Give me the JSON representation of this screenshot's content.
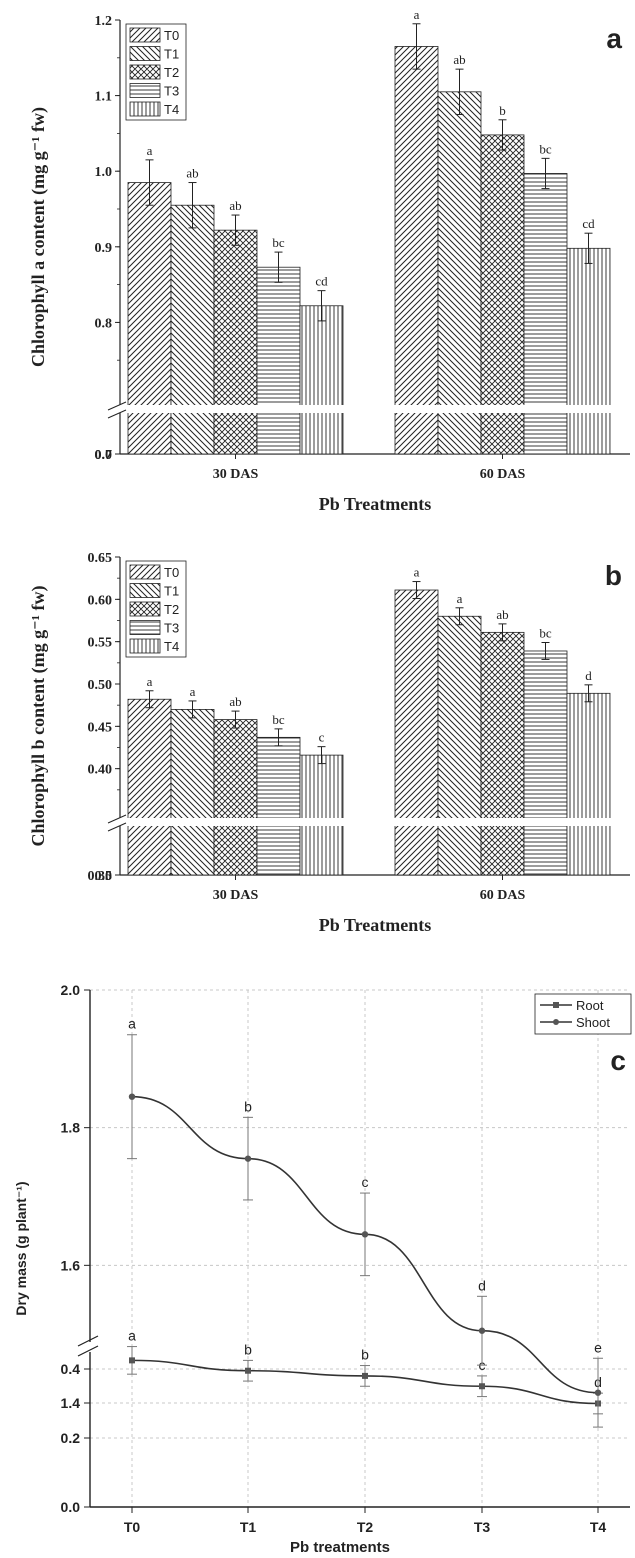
{
  "chart_data": [
    {
      "type": "bar",
      "panel": "a",
      "categories": [
        "30 DAS",
        "60 DAS"
      ],
      "series": [
        {
          "name": "T0",
          "values": [
            0.985,
            1.165
          ],
          "errors": [
            0.03,
            0.03
          ],
          "letters": [
            "a",
            "a"
          ]
        },
        {
          "name": "T1",
          "values": [
            0.955,
            1.105
          ],
          "errors": [
            0.03,
            0.03
          ],
          "letters": [
            "ab",
            "ab"
          ]
        },
        {
          "name": "T2",
          "values": [
            0.922,
            1.048
          ],
          "errors": [
            0.02,
            0.02
          ],
          "letters": [
            "ab",
            "b"
          ]
        },
        {
          "name": "T3",
          "values": [
            0.873,
            0.997
          ],
          "errors": [
            0.02,
            0.02
          ],
          "letters": [
            "bc",
            "bc"
          ]
        },
        {
          "name": "T4",
          "values": [
            0.822,
            0.898
          ],
          "errors": [
            0.02,
            0.02
          ],
          "letters": [
            "cd",
            "cd"
          ]
        }
      ],
      "xlabel": "Pb Treatments",
      "ylabel": "Chlorophyll a content (mg g⁻¹ fw)",
      "ylim": [
        0.0,
        1.2
      ],
      "axis_break": [
        0.0,
        0.7
      ],
      "yticks": [
        "0.0",
        "0.7",
        "0.8",
        "0.9",
        "1.0",
        "1.1",
        "1.2"
      ],
      "legend_position": "top-left",
      "grid": false
    },
    {
      "type": "bar",
      "panel": "b",
      "categories": [
        "30 DAS",
        "60 DAS"
      ],
      "series": [
        {
          "name": "T0",
          "values": [
            0.482,
            0.611
          ],
          "errors": [
            0.01,
            0.01
          ],
          "letters": [
            "a",
            "a"
          ]
        },
        {
          "name": "T1",
          "values": [
            0.47,
            0.58
          ],
          "errors": [
            0.01,
            0.01
          ],
          "letters": [
            "a",
            "a"
          ]
        },
        {
          "name": "T2",
          "values": [
            0.458,
            0.561
          ],
          "errors": [
            0.01,
            0.01
          ],
          "letters": [
            "ab",
            "ab"
          ]
        },
        {
          "name": "T3",
          "values": [
            0.437,
            0.539
          ],
          "errors": [
            0.01,
            0.01
          ],
          "letters": [
            "bc",
            "bc"
          ]
        },
        {
          "name": "T4",
          "values": [
            0.416,
            0.489
          ],
          "errors": [
            0.01,
            0.01
          ],
          "letters": [
            "c",
            "d"
          ]
        }
      ],
      "xlabel": "Pb Treatments",
      "ylabel": "Chlorophyll b content (mg g⁻¹ fw)",
      "ylim": [
        0.0,
        0.65
      ],
      "axis_break": [
        0.0,
        0.35
      ],
      "yticks": [
        "0.0",
        "0.35",
        "0.40",
        "0.45",
        "0.50",
        "0.55",
        "0.60",
        "0.65"
      ],
      "legend_position": "top-left",
      "grid": false
    },
    {
      "type": "line",
      "panel": "c",
      "x": [
        "T0",
        "T1",
        "T2",
        "T3",
        "T4"
      ],
      "series": [
        {
          "name": "Root",
          "values": [
            0.425,
            0.395,
            0.38,
            0.35,
            0.3
          ],
          "errors": [
            0.04,
            0.03,
            0.03,
            0.03,
            0.03
          ],
          "letters": [
            "a",
            "b",
            "b",
            "c",
            "d"
          ],
          "marker": "square"
        },
        {
          "name": "Shoot",
          "values": [
            1.845,
            1.755,
            1.645,
            1.505,
            1.415
          ],
          "errors": [
            0.09,
            0.06,
            0.06,
            0.05,
            0.05
          ],
          "letters": [
            "a",
            "b",
            "c",
            "d",
            "e"
          ],
          "marker": "circle"
        }
      ],
      "xlabel": "Pb treatments",
      "ylabel": "Dry mass (g plant⁻¹)",
      "ylim": [
        0.0,
        2.0
      ],
      "axis_break": [
        0.5,
        1.3
      ],
      "yticks": [
        "0.0",
        "0.2",
        "0.4",
        "1.4",
        "1.6",
        "1.8",
        "2.0"
      ],
      "legend_position": "top-right",
      "grid": true
    }
  ],
  "colors": {
    "ink": "#222222",
    "grid": "#c8c8c8",
    "bar_fill": "#ffffff"
  },
  "icons": [
    "axis-break-icon",
    "square-marker-icon",
    "circle-marker-icon"
  ]
}
